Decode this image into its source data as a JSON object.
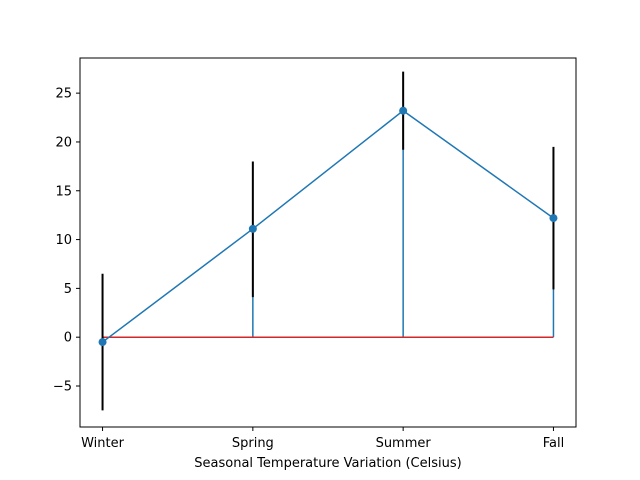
{
  "chart_data": {
    "type": "line",
    "title": "",
    "xlabel": "Seasonal Temperature Variation (Celsius)",
    "ylabel": "",
    "categories": [
      "Winter",
      "Spring",
      "Summer",
      "Fall"
    ],
    "series": [
      {
        "values": [
          -0.5,
          11.1,
          23.2,
          12.2
        ],
        "error_low": [
          -7.5,
          4.1,
          19.2,
          4.9
        ],
        "error_high": [
          6.5,
          18.0,
          27.2,
          19.5
        ],
        "color": "#1f77b4"
      }
    ],
    "baseline": {
      "value": 0,
      "color": "#d62728"
    },
    "stems": true,
    "error_bar_color": "#000000",
    "ylim": [
      -9.2,
      28.6
    ],
    "yticks": [
      -5,
      0,
      5,
      10,
      15,
      20,
      25
    ],
    "grid": false,
    "legend": "none"
  }
}
